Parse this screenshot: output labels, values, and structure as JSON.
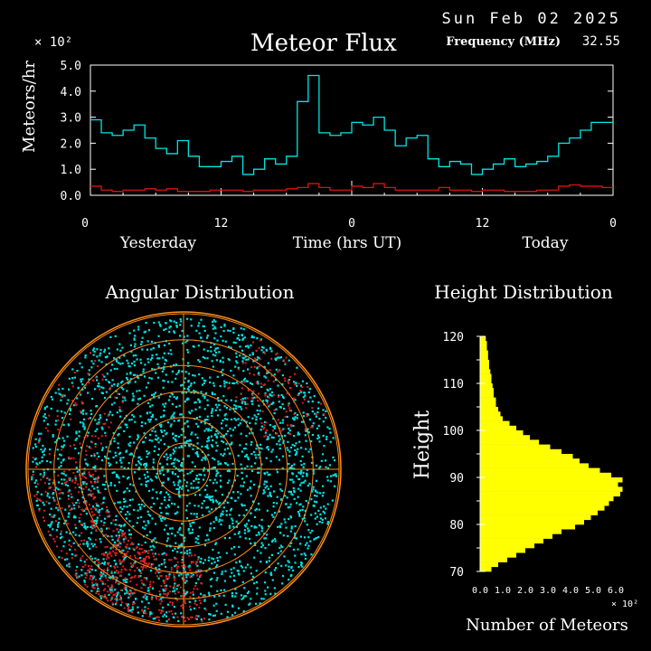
{
  "header": {
    "date": "Sun Feb 02 2025",
    "frequency_label": "Frequency (MHz)",
    "frequency_value": "32.55"
  },
  "chart_data": [
    {
      "type": "line",
      "title": "Meteor Flux",
      "ylabel": "Meteors/hr",
      "xlabel": "Time (hrs UT)",
      "y_multiplier": "× 10²",
      "ylim": [
        0,
        5
      ],
      "yticks": [
        "0.0",
        "1.0",
        "2.0",
        "3.0",
        "4.0",
        "5.0"
      ],
      "xticks": [
        "0",
        "12",
        "0",
        "12",
        "0"
      ],
      "day_labels": [
        "Yesterday",
        "Today"
      ],
      "x_hours": [
        0,
        1,
        2,
        3,
        4,
        5,
        6,
        7,
        8,
        9,
        10,
        11,
        12,
        13,
        14,
        15,
        16,
        17,
        18,
        19,
        20,
        21,
        22,
        23,
        24,
        25,
        26,
        27,
        28,
        29,
        30,
        31,
        32,
        33,
        34,
        35,
        36,
        37,
        38,
        39,
        40,
        41,
        42,
        43,
        44,
        45,
        46,
        47,
        48
      ],
      "series": [
        {
          "color": "#00e5e5",
          "values": [
            2.9,
            2.4,
            2.3,
            2.5,
            2.7,
            2.2,
            1.8,
            1.6,
            2.1,
            1.5,
            1.1,
            1.1,
            1.3,
            1.5,
            0.8,
            1.0,
            1.4,
            1.2,
            1.5,
            3.6,
            4.6,
            2.4,
            2.3,
            2.4,
            2.8,
            2.7,
            3.0,
            2.5,
            1.9,
            2.2,
            2.3,
            1.4,
            1.1,
            1.3,
            1.2,
            0.8,
            1.0,
            1.2,
            1.4,
            1.1,
            1.2,
            1.3,
            1.5,
            2.0,
            2.2,
            2.5,
            2.8,
            2.8
          ]
        },
        {
          "color": "#e01010",
          "values": [
            0.35,
            0.2,
            0.15,
            0.2,
            0.2,
            0.25,
            0.2,
            0.25,
            0.15,
            0.15,
            0.15,
            0.2,
            0.2,
            0.2,
            0.15,
            0.2,
            0.2,
            0.2,
            0.25,
            0.3,
            0.45,
            0.3,
            0.2,
            0.2,
            0.35,
            0.3,
            0.45,
            0.3,
            0.2,
            0.2,
            0.2,
            0.2,
            0.3,
            0.2,
            0.2,
            0.15,
            0.2,
            0.2,
            0.15,
            0.15,
            0.15,
            0.2,
            0.2,
            0.35,
            0.4,
            0.35,
            0.35,
            0.3
          ]
        }
      ]
    },
    {
      "type": "scatter",
      "title": "Angular Distribution",
      "ring_count": 6,
      "point_colors": [
        "#00e0e0",
        "#e02020"
      ]
    },
    {
      "type": "bar",
      "title": "Height Distribution",
      "ylabel": "Height",
      "xlabel": "Number of Meteors",
      "x_multiplier": "× 10²",
      "xlim": [
        0,
        6
      ],
      "ylim": [
        70,
        120
      ],
      "xticks": [
        "0.0",
        "1.0",
        "2.0",
        "3.0",
        "4.0",
        "5.0",
        "6.0"
      ],
      "yticks": [
        "70",
        "80",
        "90",
        "100",
        "110",
        "120"
      ],
      "color": "#ffff00",
      "heights": [
        70,
        71,
        72,
        73,
        74,
        75,
        76,
        77,
        78,
        79,
        80,
        81,
        82,
        83,
        84,
        85,
        86,
        87,
        88,
        89,
        90,
        91,
        92,
        93,
        94,
        95,
        96,
        97,
        98,
        99,
        100,
        101,
        102,
        103,
        104,
        105,
        106,
        107,
        108,
        109,
        110,
        111,
        112,
        113,
        114,
        115,
        116,
        117,
        118,
        119
      ],
      "values": [
        0.5,
        0.8,
        1.2,
        1.6,
        2.0,
        2.4,
        2.8,
        3.2,
        3.6,
        4.2,
        4.6,
        4.9,
        5.2,
        5.5,
        5.7,
        5.9,
        6.2,
        6.3,
        6.1,
        6.3,
        5.8,
        5.3,
        4.8,
        4.4,
        4.1,
        3.6,
        3.1,
        2.6,
        2.2,
        1.9,
        1.6,
        1.3,
        1.0,
        0.9,
        0.8,
        0.7,
        0.7,
        0.6,
        0.6,
        0.55,
        0.5,
        0.5,
        0.45,
        0.4,
        0.4,
        0.35,
        0.35,
        0.3,
        0.3,
        0.25
      ]
    }
  ]
}
